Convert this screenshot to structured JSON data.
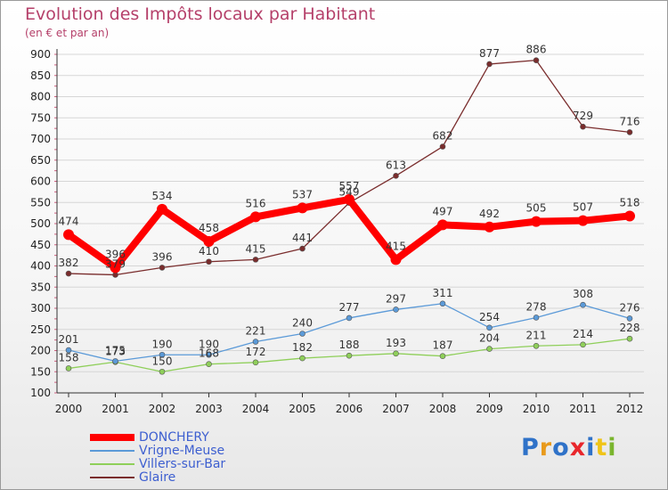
{
  "title": "Evolution des Impôts locaux par Habitant",
  "subtitle": "(en € et par an)",
  "logo": {
    "text": "Proxiti",
    "letter_colors": [
      "#2f72c8",
      "#e89a1c",
      "#2f72c8",
      "#e8262b",
      "#2f72c8",
      "#f0c419",
      "#7ab52e"
    ]
  },
  "chart_data": {
    "type": "line",
    "x": [
      "2000",
      "2001",
      "2002",
      "2003",
      "2004",
      "2005",
      "2006",
      "2007",
      "2008",
      "2009",
      "2010",
      "2011",
      "2012"
    ],
    "yticks": [
      100,
      150,
      200,
      250,
      300,
      350,
      400,
      450,
      500,
      550,
      600,
      650,
      700,
      750,
      800,
      850,
      900
    ],
    "ylim": [
      100,
      900
    ],
    "grid": "horizontal",
    "legend_position": "bottom-left",
    "series": [
      {
        "name": "Glaire",
        "color": "#7a2d2d",
        "values": [
          382,
          379,
          396,
          410,
          415,
          441,
          549,
          613,
          682,
          877,
          886,
          729,
          716
        ]
      },
      {
        "name": "Villers-sur-Bar",
        "color": "#8fcf5a",
        "values": [
          158,
          173,
          150,
          168,
          172,
          182,
          188,
          193,
          187,
          204,
          211,
          214,
          228
        ]
      },
      {
        "name": "Vrigne-Meuse",
        "color": "#5b9ad8",
        "values": [
          201,
          175,
          190,
          190,
          221,
          240,
          277,
          297,
          311,
          254,
          278,
          308,
          276
        ]
      },
      {
        "name": "DONCHERY",
        "color": "#ff0000",
        "values": [
          474,
          396,
          534,
          458,
          516,
          537,
          557,
          415,
          497,
          492,
          505,
          507,
          518
        ]
      }
    ],
    "legend_order": [
      "DONCHERY",
      "Vrigne-Meuse",
      "Villers-sur-Bar",
      "Glaire"
    ]
  }
}
